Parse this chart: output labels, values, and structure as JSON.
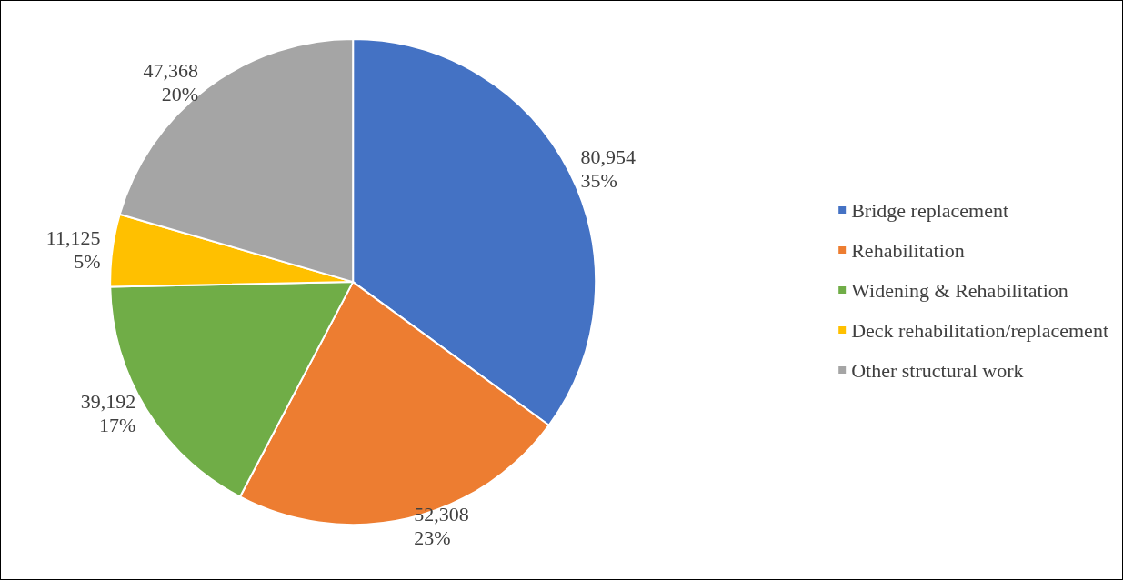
{
  "chart_data": {
    "type": "pie",
    "categories": [
      "Bridge replacement",
      "Rehabilitation",
      "Widening & Rehabilitation",
      "Deck rehabilitation/replacement",
      "Other structural work"
    ],
    "values": [
      80954,
      52308,
      39192,
      11125,
      47368
    ],
    "colors": [
      "#4472c4",
      "#ed7d31",
      "#70ad47",
      "#ffc000",
      "#a5a5a5"
    ],
    "value_labels": [
      "80,954\n35%",
      "52,308\n23%",
      "39,192\n17%",
      "11,125\n5%",
      "47,368\n20%"
    ],
    "legend": "right"
  }
}
